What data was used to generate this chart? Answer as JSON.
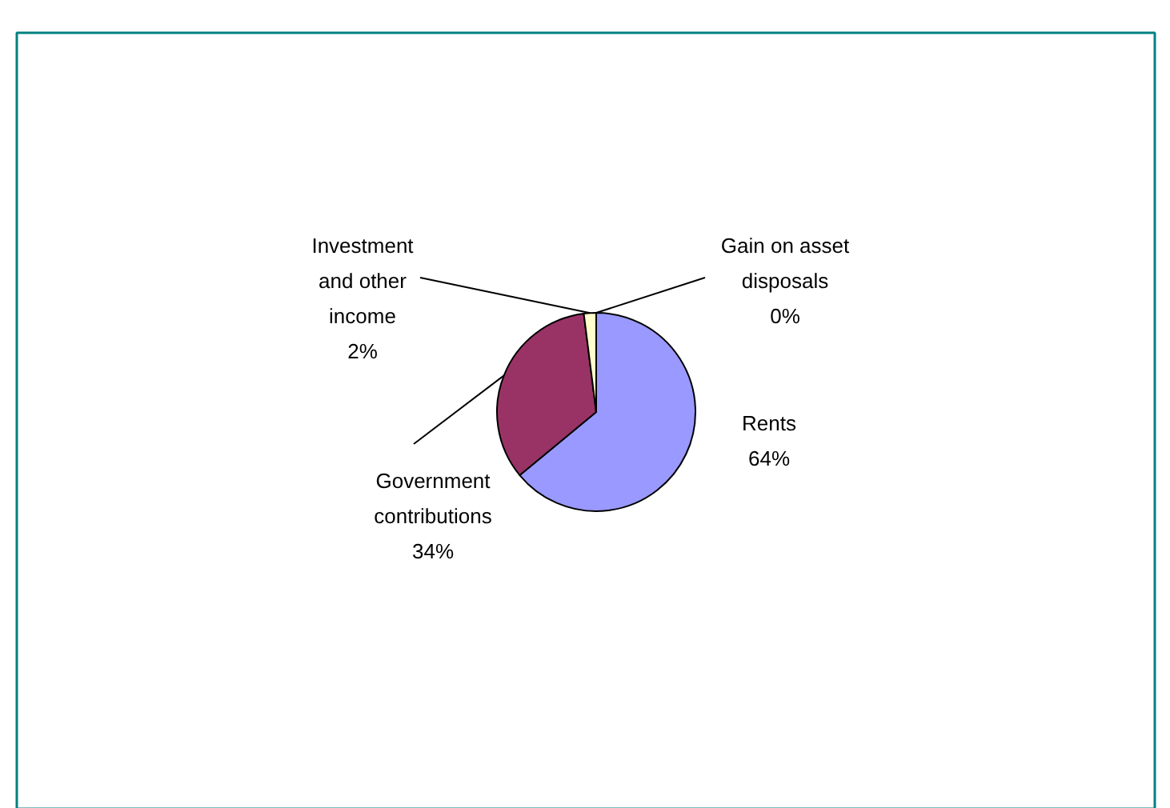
{
  "chart_data": {
    "type": "pie",
    "categories": [
      "Rents",
      "Government contributions",
      "Investment and other income",
      "Gain on asset disposals"
    ],
    "values": [
      64,
      34,
      2,
      0
    ],
    "value_labels": [
      "64%",
      "34%",
      "2%",
      "0%"
    ],
    "colors": [
      "#9999ff",
      "#993366",
      "#ffffcc",
      "#ccffff"
    ]
  }
}
